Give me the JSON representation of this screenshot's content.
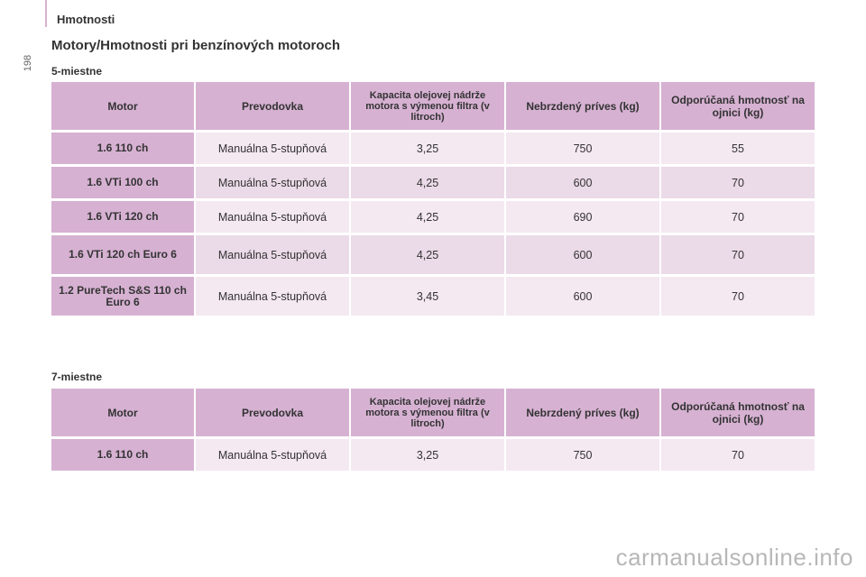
{
  "page_number": "198",
  "section_title": "Hmotnosti",
  "heading": "Motory/Hmotnosti pri benzínových motoroch",
  "headers": {
    "motor": "Motor",
    "gearbox": "Prevodovka",
    "oil": "Kapacita olejovej nádrže motora s výmenou filtra (v litroch)",
    "trailer": "Nebrzdený príves (kg)",
    "nose": "Odporúčaná hmotnosť na ojnici (kg)"
  },
  "table_5": {
    "subtitle": "5-miestne",
    "rows": [
      {
        "motor": "1.6 110 ch",
        "gearbox": "Manuálna 5-stupňová",
        "oil": "3,25",
        "trailer": "750",
        "nose": "55"
      },
      {
        "motor": "1.6 VTi 100 ch",
        "gearbox": "Manuálna 5-stupňová",
        "oil": "4,25",
        "trailer": "600",
        "nose": "70"
      },
      {
        "motor": "1.6 VTi 120 ch",
        "gearbox": "Manuálna 5-stupňová",
        "oil": "4,25",
        "trailer": "690",
        "nose": "70"
      },
      {
        "motor": "1.6 VTi 120 ch Euro 6",
        "gearbox": "Manuálna 5-stupňová",
        "oil": "4,25",
        "trailer": "600",
        "nose": "70"
      },
      {
        "motor": "1.2 PureTech S&S 110 ch Euro 6",
        "gearbox": "Manuálna 5-stupňová",
        "oil": "3,45",
        "trailer": "600",
        "nose": "70"
      }
    ]
  },
  "table_7": {
    "subtitle": "7-miestne",
    "rows": [
      {
        "motor": "1.6 110 ch",
        "gearbox": "Manuálna 5-stupňová",
        "oil": "3,25",
        "trailer": "750",
        "nose": "70"
      }
    ]
  },
  "watermark": "carmanualsonline.info",
  "colors": {
    "header_bg": "#d6b1d2",
    "row_light": "#f4e8f1",
    "row_dark": "#ebdae8"
  }
}
